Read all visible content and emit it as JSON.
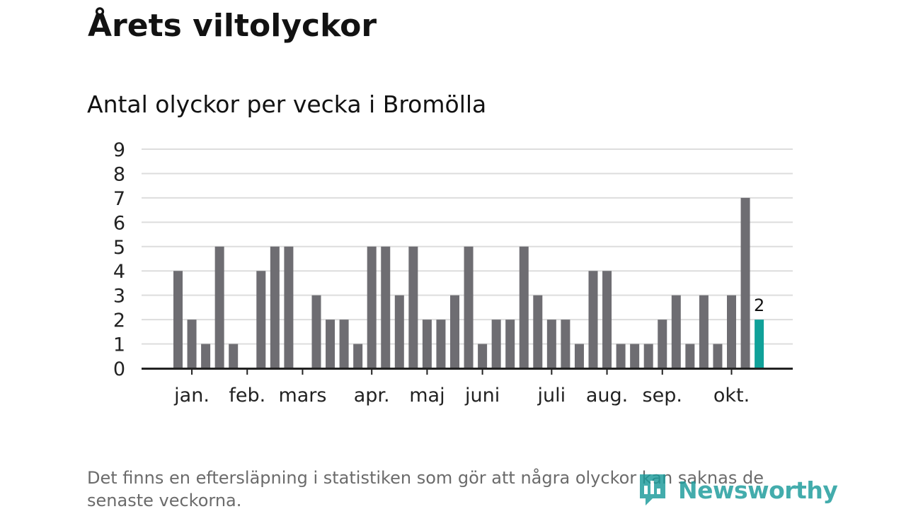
{
  "title": "Årets viltolyckor",
  "subtitle": "Antal olyckor per vecka i Bromölla",
  "footnote": "Det finns en eftersläpning i statistiken som gör att några olyckor kan saknas de senaste veckorna.",
  "logo": {
    "text": "Newsworthy"
  },
  "colors": {
    "bar": "#6e6d72",
    "highlight": "#10a199",
    "grid": "#dddddd",
    "axis": "#222222",
    "text": "#121212",
    "footnote": "#6b6b6b",
    "brand": "#1a9a9a"
  },
  "chart_data": {
    "type": "bar",
    "title": "Antal olyckor per vecka i Bromölla",
    "xlabel": "",
    "ylabel": "",
    "ylim": [
      0,
      9
    ],
    "yticks": [
      0,
      1,
      2,
      3,
      4,
      5,
      6,
      7,
      8,
      9
    ],
    "x_unit": "vecka",
    "values": [
      4,
      2,
      1,
      5,
      1,
      0,
      4,
      5,
      5,
      0,
      3,
      2,
      2,
      1,
      5,
      5,
      3,
      5,
      2,
      2,
      3,
      5,
      1,
      2,
      2,
      5,
      3,
      2,
      2,
      1,
      4,
      4,
      1,
      1,
      1,
      2,
      3,
      1,
      3,
      1,
      3,
      7,
      2
    ],
    "highlight_index": 42,
    "highlight_label": "2",
    "month_labels": [
      {
        "label": "jan.",
        "week": 1
      },
      {
        "label": "feb.",
        "week": 5
      },
      {
        "label": "mars",
        "week": 9
      },
      {
        "label": "apr.",
        "week": 14
      },
      {
        "label": "maj",
        "week": 18
      },
      {
        "label": "juni",
        "week": 22
      },
      {
        "label": "juli",
        "week": 27
      },
      {
        "label": "aug.",
        "week": 31
      },
      {
        "label": "sep.",
        "week": 35
      },
      {
        "label": "okt.",
        "week": 40
      }
    ],
    "grid": true
  }
}
